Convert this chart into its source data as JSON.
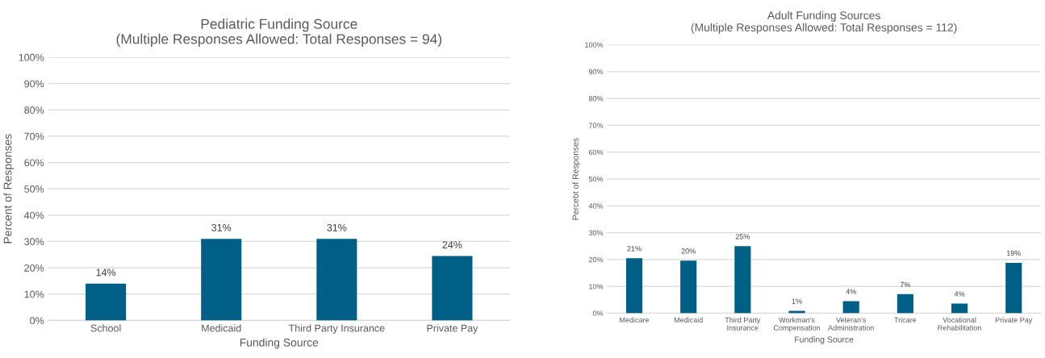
{
  "chart_data": [
    {
      "type": "bar",
      "title": "Pediatric Funding Source\n(Multiple Responses Allowed: Total Responses = 94)",
      "xlabel": "Funding Source",
      "ylabel": "Percent of Responses",
      "categories": [
        "School",
        "Medicaid",
        "Third Party Insurance",
        "Private Pay"
      ],
      "values": [
        14,
        31,
        31,
        24.5
      ],
      "value_labels": [
        "14%",
        "31%",
        "31%",
        "24%"
      ],
      "color": "#005f86",
      "grid": "y",
      "ylim": [
        0,
        100
      ],
      "yticks": [
        {
          "value": 0,
          "label": "0%"
        },
        {
          "value": 10,
          "label": "10%"
        },
        {
          "value": 20,
          "label": "20%"
        },
        {
          "value": 30,
          "label": "30%"
        },
        {
          "value": 40,
          "label": "40%"
        },
        {
          "value": 50,
          "label": "50%"
        },
        {
          "value": 60,
          "label": "60%"
        },
        {
          "value": 70,
          "label": "70%"
        },
        {
          "value": 80,
          "label": "80%"
        },
        {
          "value": 90,
          "label": "90%"
        },
        {
          "value": 100,
          "label": "100%"
        }
      ]
    },
    {
      "type": "bar",
      "title": "Adult Funding Sources\n(Multiple Responses Allowed: Total Responses = 112)",
      "xlabel": "Funding Source",
      "ylabel": "Percebt of Responses",
      "categories": [
        "Medicare",
        "Medicaid",
        "Third Party\nInsurance",
        "Workman's\nCompensation",
        "Veteran's\nAdministration",
        "Tricare",
        "Vocational\nRehabilitation",
        "Private Pay"
      ],
      "values": [
        20.5,
        19.6,
        25,
        0.9,
        4.5,
        7.1,
        3.6,
        18.8
      ],
      "value_labels": [
        "21%",
        "20%",
        "25%",
        "1%",
        "4%",
        "7%",
        "4%",
        "19%"
      ],
      "color": "#005f86",
      "grid": "y",
      "ylim": [
        0,
        100
      ],
      "yticks": [
        {
          "value": 0,
          "label": "0%"
        },
        {
          "value": 10,
          "label": "10%"
        },
        {
          "value": 20,
          "label": "20%"
        },
        {
          "value": 30,
          "label": "30%"
        },
        {
          "value": 40,
          "label": "40%"
        },
        {
          "value": 50,
          "label": "50%"
        },
        {
          "value": 60,
          "label": "60%"
        },
        {
          "value": 70,
          "label": "70%"
        },
        {
          "value": 80,
          "label": "80%"
        },
        {
          "value": 90,
          "label": "90%"
        },
        {
          "value": 100,
          "label": "100%"
        }
      ]
    }
  ]
}
